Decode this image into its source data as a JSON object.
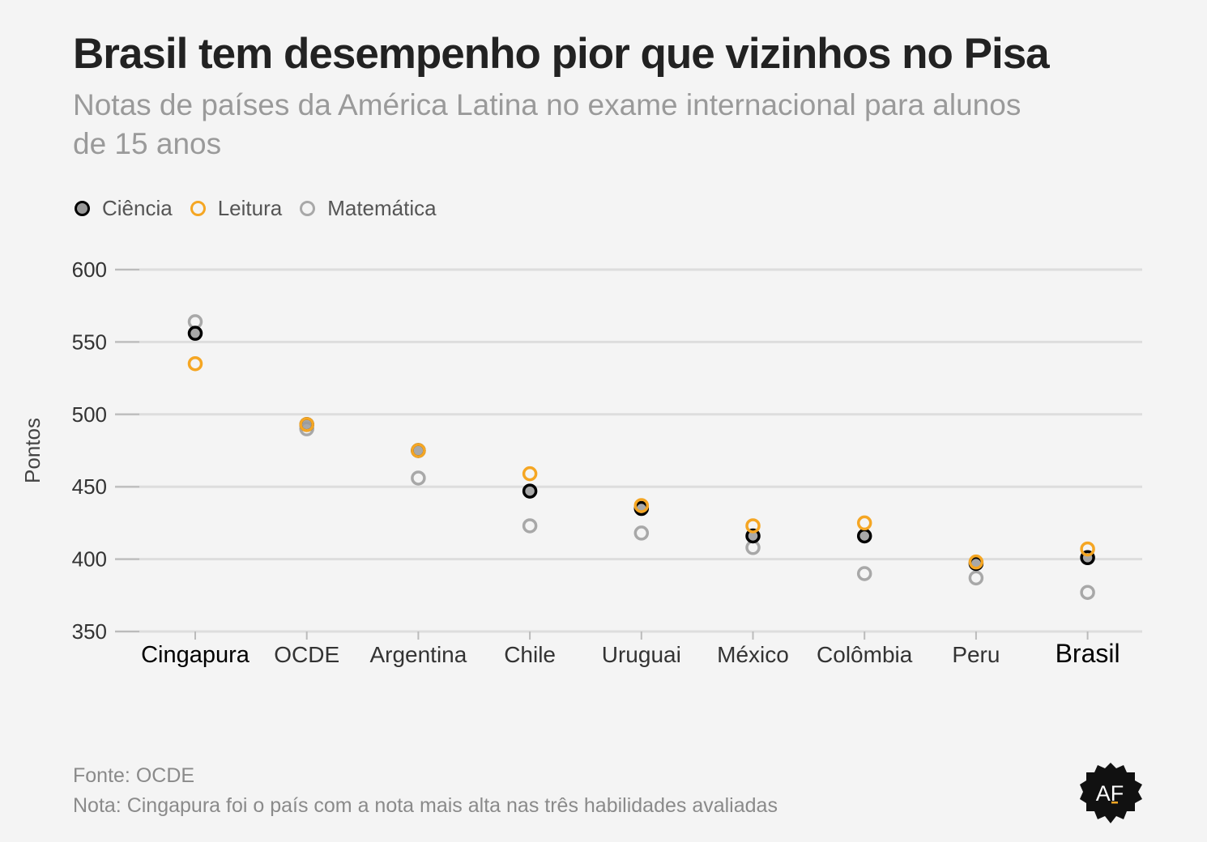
{
  "header": {
    "title": "Brasil tem desempenho pior que vizinhos no Pisa",
    "subtitle": "Notas de países da América Latina no exame internacional para alunos de 15 anos"
  },
  "footer": {
    "source": "Fonte: OCDE",
    "note": "Nota: Cingapura foi o país com a nota mais alta nas três habilidades avaliadas"
  },
  "logo": {
    "text": "AF"
  },
  "colors": {
    "background": "#f4f4f4",
    "ciencia": "#000000",
    "leitura": "#f5a623",
    "matematica": "#9e9e9e",
    "grid": "#dddddd"
  },
  "chart_data": {
    "type": "scatter",
    "ylabel": "Pontos",
    "ylim": [
      350,
      600
    ],
    "yticks": [
      600,
      550,
      500,
      450,
      400,
      350
    ],
    "grid": true,
    "legend_position": "top-left",
    "highlighted_categories": [
      "Cingapura",
      "Brasil"
    ],
    "categories": [
      "Cingapura",
      "OCDE",
      "Argentina",
      "Chile",
      "Uruguai",
      "México",
      "Colômbia",
      "Peru",
      "Brasil"
    ],
    "series": [
      {
        "name": "Ciência",
        "color": "#000000",
        "values": [
          556,
          493,
          475,
          447,
          435,
          416,
          416,
          397,
          401
        ]
      },
      {
        "name": "Leitura",
        "color": "#f5a623",
        "values": [
          535,
          493,
          475,
          459,
          437,
          423,
          425,
          398,
          407
        ]
      },
      {
        "name": "Matemática",
        "color": "#9e9e9e",
        "values": [
          564,
          490,
          456,
          423,
          418,
          408,
          390,
          387,
          377
        ]
      }
    ]
  }
}
